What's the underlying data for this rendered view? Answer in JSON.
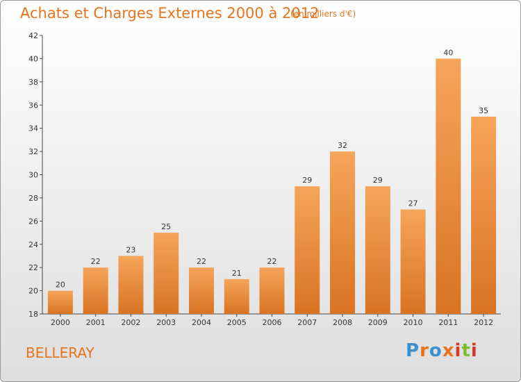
{
  "title": "Achats et Charges Externes 2000 à 2012",
  "subtitle": "(en milliers d'€)",
  "place": "BELLERAY",
  "logo": {
    "text": "Proxiti",
    "colors": [
      "#3a8fd0",
      "#e8731c",
      "#7bbd2c",
      "#d43a2a"
    ]
  },
  "colors": {
    "bar_top": "#f5a55a",
    "bar_bottom": "#d97322",
    "accent": "#e8731c"
  },
  "chart_data": {
    "type": "bar",
    "categories": [
      "2000",
      "2001",
      "2002",
      "2003",
      "2004",
      "2005",
      "2006",
      "2007",
      "2008",
      "2009",
      "2010",
      "2011",
      "2012"
    ],
    "values": [
      20,
      22,
      23,
      25,
      22,
      21,
      22,
      29,
      32,
      29,
      27,
      40,
      35
    ],
    "ylim": [
      18,
      42
    ],
    "yticks": [
      18,
      20,
      22,
      24,
      26,
      28,
      30,
      32,
      34,
      36,
      38,
      40,
      42
    ],
    "grid": false,
    "data_labels": true
  }
}
